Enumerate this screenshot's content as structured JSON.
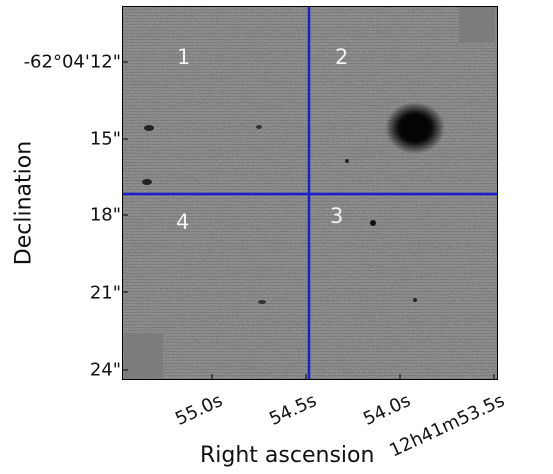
{
  "axes": {
    "xlabel": "Right ascension",
    "ylabel": "Declination",
    "x_ticks": [
      "55.0s",
      "54.5s",
      "54.0s",
      "12h41m53.5s"
    ],
    "y_ticks": [
      "-62°04'12\"",
      "15\"",
      "18\"",
      "21\"",
      "24\""
    ]
  },
  "quadrants": [
    "1",
    "2",
    "3",
    "4"
  ],
  "colors": {
    "crosshair": "#1a1fd6",
    "background": "#7a7a7a"
  }
}
